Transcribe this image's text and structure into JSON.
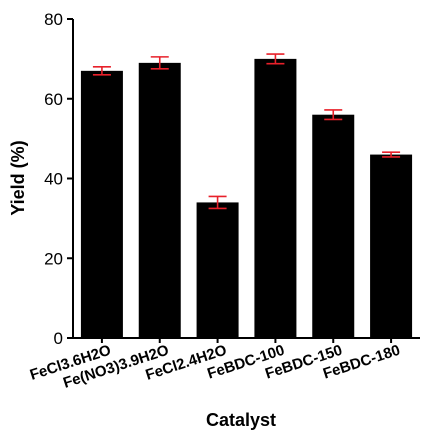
{
  "chart_data": {
    "type": "bar",
    "title": "",
    "xlabel": "Catalyst",
    "ylabel": "Yield (%)",
    "ylim": [
      0,
      80
    ],
    "yticks": [
      0,
      20,
      40,
      60,
      80
    ],
    "categories": [
      "FeCl3.6H2O",
      "Fe(NO3)3.9H2O",
      "FeCl2.4H2O",
      "FeBDC-100",
      "FeBDC-150",
      "FeBDC-180"
    ],
    "values": [
      67,
      69,
      34,
      70,
      56,
      46
    ],
    "errors": [
      1.0,
      1.5,
      1.5,
      1.2,
      1.2,
      0.6
    ],
    "grid": false,
    "colors": {
      "bar": "#000000",
      "error_bar": "#e8202a",
      "axis": "#000000"
    }
  }
}
